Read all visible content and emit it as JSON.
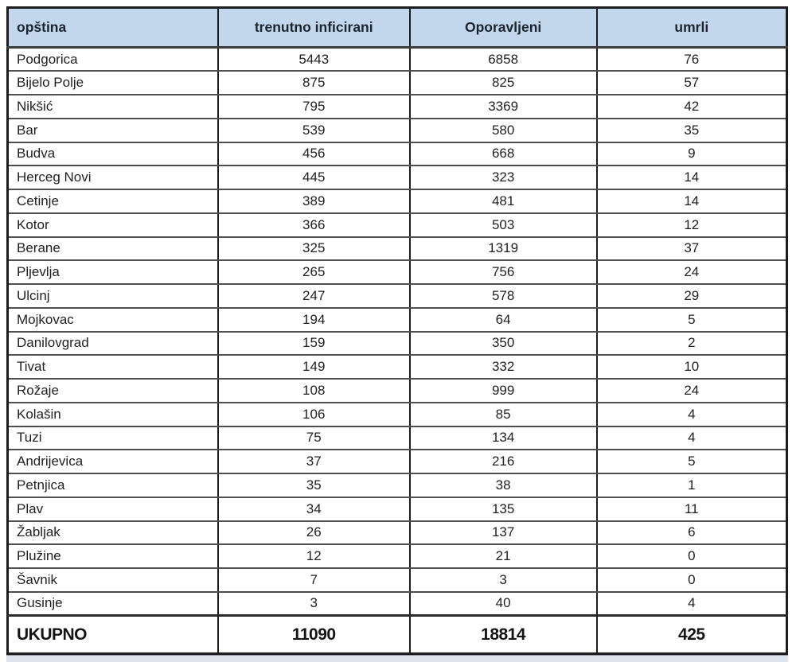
{
  "colors": {
    "header_fill": "#c3d7ec",
    "header_text": "#1b2530",
    "body_text": "#1f1f1f",
    "outer_border": "#1c1c1c",
    "row_border": "#4f4f4f",
    "bottom_strip": "#dde4ee",
    "page_background": "#ffffff"
  },
  "chart_data": {
    "type": "table",
    "title": "",
    "columns": [
      "opština",
      "trenutno inficirani",
      "Oporavljeni",
      "umrli"
    ],
    "rows": [
      [
        "Podgorica",
        5443,
        6858,
        76
      ],
      [
        "Bijelo Polje",
        875,
        825,
        57
      ],
      [
        "Nikšić",
        795,
        3369,
        42
      ],
      [
        "Bar",
        539,
        580,
        35
      ],
      [
        "Budva",
        456,
        668,
        9
      ],
      [
        "Herceg Novi",
        445,
        323,
        14
      ],
      [
        "Cetinje",
        389,
        481,
        14
      ],
      [
        "Kotor",
        366,
        503,
        12
      ],
      [
        "Berane",
        325,
        1319,
        37
      ],
      [
        "Pljevlja",
        265,
        756,
        24
      ],
      [
        "Ulcinj",
        247,
        578,
        29
      ],
      [
        "Mojkovac",
        194,
        64,
        5
      ],
      [
        "Danilovgrad",
        159,
        350,
        2
      ],
      [
        "Tivat",
        149,
        332,
        10
      ],
      [
        "Rožaje",
        108,
        999,
        24
      ],
      [
        "Kolašin",
        106,
        85,
        4
      ],
      [
        "Tuzi",
        75,
        134,
        4
      ],
      [
        "Andrijevica",
        37,
        216,
        5
      ],
      [
        "Petnjica",
        35,
        38,
        1
      ],
      [
        "Plav",
        34,
        135,
        11
      ],
      [
        "Žabljak",
        26,
        137,
        6
      ],
      [
        "Plužine",
        12,
        21,
        0
      ],
      [
        "Šavnik",
        7,
        3,
        0
      ],
      [
        "Gusinje",
        3,
        40,
        4
      ]
    ],
    "total_row": [
      "UKUPNO",
      11090,
      18814,
      425
    ],
    "layout": {
      "header_align": [
        "left",
        "center",
        "center",
        "center"
      ],
      "body_align": [
        "left",
        "center",
        "center",
        "center"
      ],
      "grid": true,
      "legend_position": "none"
    }
  }
}
